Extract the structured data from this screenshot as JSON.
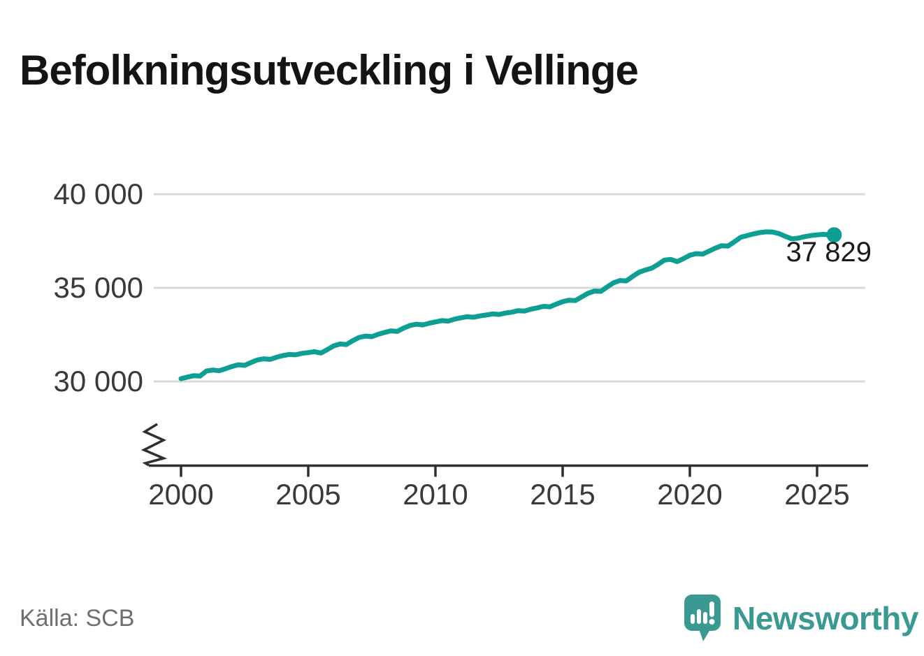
{
  "page": {
    "title": "Befolkningsutveckling i Vellinge",
    "source": "Källa: SCB"
  },
  "branding": {
    "name": "Newsworthy",
    "logo_color": "#3a9a92"
  },
  "chart_data": {
    "type": "line",
    "title": "Befolkningsutveckling i Vellinge",
    "source": "Källa: SCB",
    "grid": "horizontal",
    "y_axis_break": true,
    "line_color": "#0d9f93",
    "axis_color": "#2f2f2f",
    "gridline_color": "#d9d9d9",
    "x_range": [
      1999,
      2027
    ],
    "y_range_displayed": [
      30000,
      40000
    ],
    "x_ticks": [
      2000,
      2005,
      2010,
      2015,
      2020,
      2025
    ],
    "x_tick_labels": [
      "2000",
      "2005",
      "2010",
      "2015",
      "2020",
      "2025"
    ],
    "y_ticks": [
      40000,
      35000,
      30000
    ],
    "y_tick_labels": [
      "40 000",
      "35 000",
      "30 000"
    ],
    "end_label": "37 829",
    "end_value": 37829,
    "series": [
      {
        "name": "Befolkning i Vellinge",
        "points": [
          [
            2000.0,
            30150
          ],
          [
            2000.25,
            30230
          ],
          [
            2000.5,
            30310
          ],
          [
            2000.75,
            30290
          ],
          [
            2001.0,
            30560
          ],
          [
            2001.25,
            30610
          ],
          [
            2001.5,
            30570
          ],
          [
            2001.75,
            30680
          ],
          [
            2002.0,
            30800
          ],
          [
            2002.25,
            30890
          ],
          [
            2002.5,
            30860
          ],
          [
            2002.75,
            31010
          ],
          [
            2003.0,
            31150
          ],
          [
            2003.25,
            31210
          ],
          [
            2003.5,
            31180
          ],
          [
            2003.75,
            31290
          ],
          [
            2004.0,
            31380
          ],
          [
            2004.25,
            31440
          ],
          [
            2004.5,
            31420
          ],
          [
            2004.75,
            31500
          ],
          [
            2005.0,
            31540
          ],
          [
            2005.25,
            31590
          ],
          [
            2005.5,
            31520
          ],
          [
            2005.75,
            31700
          ],
          [
            2006.0,
            31900
          ],
          [
            2006.25,
            32000
          ],
          [
            2006.5,
            31970
          ],
          [
            2006.75,
            32180
          ],
          [
            2007.0,
            32350
          ],
          [
            2007.25,
            32420
          ],
          [
            2007.5,
            32390
          ],
          [
            2007.75,
            32520
          ],
          [
            2008.0,
            32620
          ],
          [
            2008.25,
            32700
          ],
          [
            2008.5,
            32670
          ],
          [
            2008.75,
            32850
          ],
          [
            2009.0,
            32990
          ],
          [
            2009.25,
            33060
          ],
          [
            2009.5,
            33020
          ],
          [
            2009.75,
            33110
          ],
          [
            2010.0,
            33180
          ],
          [
            2010.25,
            33250
          ],
          [
            2010.5,
            33220
          ],
          [
            2010.75,
            33330
          ],
          [
            2011.0,
            33400
          ],
          [
            2011.25,
            33460
          ],
          [
            2011.5,
            33430
          ],
          [
            2011.75,
            33500
          ],
          [
            2012.0,
            33550
          ],
          [
            2012.25,
            33610
          ],
          [
            2012.5,
            33580
          ],
          [
            2012.75,
            33650
          ],
          [
            2013.0,
            33700
          ],
          [
            2013.25,
            33780
          ],
          [
            2013.5,
            33760
          ],
          [
            2013.75,
            33860
          ],
          [
            2014.0,
            33930
          ],
          [
            2014.25,
            34010
          ],
          [
            2014.5,
            33990
          ],
          [
            2014.75,
            34130
          ],
          [
            2015.0,
            34260
          ],
          [
            2015.25,
            34340
          ],
          [
            2015.5,
            34320
          ],
          [
            2015.75,
            34520
          ],
          [
            2016.0,
            34710
          ],
          [
            2016.25,
            34830
          ],
          [
            2016.5,
            34810
          ],
          [
            2016.75,
            35050
          ],
          [
            2017.0,
            35270
          ],
          [
            2017.25,
            35390
          ],
          [
            2017.5,
            35370
          ],
          [
            2017.75,
            35610
          ],
          [
            2018.0,
            35830
          ],
          [
            2018.25,
            35950
          ],
          [
            2018.5,
            36050
          ],
          [
            2018.75,
            36250
          ],
          [
            2019.0,
            36480
          ],
          [
            2019.25,
            36520
          ],
          [
            2019.5,
            36400
          ],
          [
            2019.75,
            36560
          ],
          [
            2020.0,
            36740
          ],
          [
            2020.25,
            36830
          ],
          [
            2020.5,
            36800
          ],
          [
            2020.75,
            36960
          ],
          [
            2021.0,
            37120
          ],
          [
            2021.25,
            37250
          ],
          [
            2021.5,
            37230
          ],
          [
            2021.75,
            37460
          ],
          [
            2022.0,
            37700
          ],
          [
            2022.25,
            37790
          ],
          [
            2022.5,
            37880
          ],
          [
            2022.75,
            37950
          ],
          [
            2023.0,
            37990
          ],
          [
            2023.25,
            37980
          ],
          [
            2023.5,
            37900
          ],
          [
            2023.75,
            37750
          ],
          [
            2024.0,
            37620
          ],
          [
            2024.25,
            37650
          ],
          [
            2024.5,
            37730
          ],
          [
            2024.75,
            37790
          ],
          [
            2025.0,
            37830
          ],
          [
            2025.25,
            37860
          ],
          [
            2025.5,
            37820
          ],
          [
            2025.67,
            37829
          ]
        ]
      }
    ]
  }
}
